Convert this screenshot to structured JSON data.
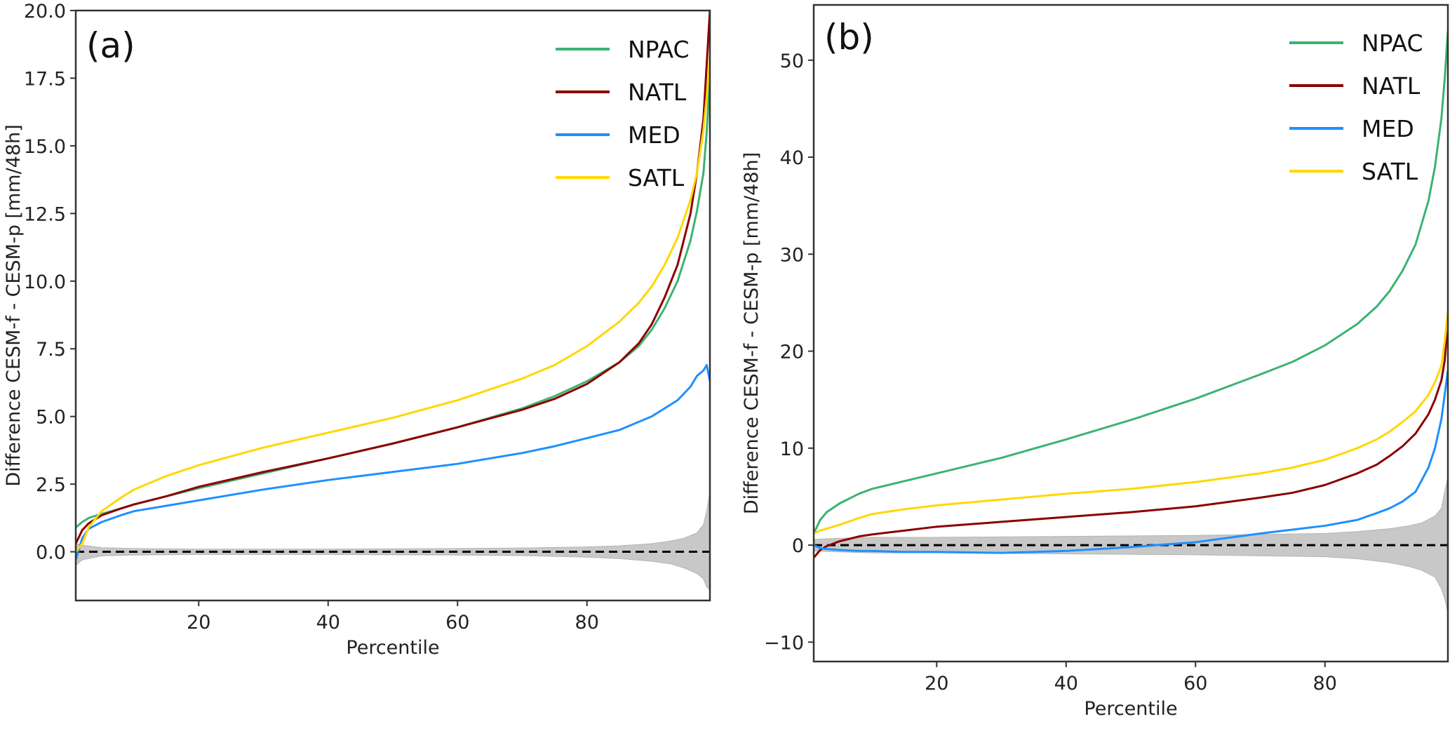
{
  "chart_data": [
    {
      "type": "line",
      "panel_label": "(a)",
      "title": "",
      "xlabel": "Percentile",
      "ylabel": "Difference CESM-f - CESM-p [mm/48h]",
      "xlim": [
        1,
        99
      ],
      "ylim": [
        -1.8,
        20.0
      ],
      "xticks": [
        20,
        40,
        60,
        80
      ],
      "xtick_labels": [
        "20",
        "40",
        "60",
        "80"
      ],
      "yticks": [
        0.0,
        2.5,
        5.0,
        7.5,
        10.0,
        12.5,
        15.0,
        17.5,
        20.0
      ],
      "ytick_labels": [
        "0.0",
        "2.5",
        "5.0",
        "7.5",
        "10.0",
        "12.5",
        "15.0",
        "17.5",
        "20.0"
      ],
      "grid": false,
      "legend_position": "top-right",
      "reference_line": {
        "y": 0,
        "style": "dashed",
        "color": "#000000"
      },
      "uncertainty_band": {
        "color": "#c8c8c8",
        "x": [
          1,
          2,
          5,
          10,
          20,
          40,
          60,
          70,
          80,
          85,
          90,
          93,
          95,
          97,
          98,
          98.5,
          99
        ],
        "upper": [
          0.3,
          0.25,
          0.15,
          0.12,
          0.1,
          0.1,
          0.12,
          0.14,
          0.18,
          0.22,
          0.3,
          0.4,
          0.5,
          0.7,
          1.0,
          1.5,
          2.2
        ],
        "lower": [
          -0.5,
          -0.3,
          -0.15,
          -0.12,
          -0.1,
          -0.1,
          -0.12,
          -0.14,
          -0.2,
          -0.25,
          -0.35,
          -0.45,
          -0.6,
          -0.8,
          -1.0,
          -1.3,
          -1.4
        ]
      },
      "x": [
        1,
        2,
        3,
        5,
        8,
        10,
        15,
        20,
        30,
        40,
        50,
        60,
        70,
        75,
        80,
        85,
        88,
        90,
        92,
        94,
        96,
        97,
        98,
        98.5,
        99
      ],
      "series": [
        {
          "name": "NPAC",
          "color": "#3cb371",
          "values": [
            0.9,
            1.1,
            1.25,
            1.4,
            1.6,
            1.75,
            2.05,
            2.35,
            2.9,
            3.45,
            4.0,
            4.6,
            5.3,
            5.75,
            6.3,
            7.0,
            7.6,
            8.2,
            9.0,
            10.0,
            11.5,
            12.6,
            14.0,
            15.5,
            17.5
          ]
        },
        {
          "name": "NATL",
          "color": "#8b0000",
          "values": [
            0.3,
            0.8,
            1.05,
            1.35,
            1.6,
            1.75,
            2.05,
            2.4,
            2.95,
            3.45,
            4.0,
            4.6,
            5.25,
            5.65,
            6.2,
            7.0,
            7.7,
            8.4,
            9.4,
            10.6,
            12.5,
            14.0,
            16.0,
            18.0,
            20.0
          ]
        },
        {
          "name": "MED",
          "color": "#1e90ff",
          "values": [
            -0.3,
            0.5,
            0.85,
            1.1,
            1.35,
            1.5,
            1.7,
            1.9,
            2.3,
            2.65,
            2.95,
            3.25,
            3.65,
            3.9,
            4.2,
            4.5,
            4.8,
            5.0,
            5.3,
            5.6,
            6.1,
            6.5,
            6.7,
            6.9,
            6.3
          ]
        },
        {
          "name": "SATL",
          "color": "#ffd700",
          "values": [
            0.0,
            0.3,
            0.9,
            1.5,
            2.0,
            2.3,
            2.8,
            3.2,
            3.85,
            4.4,
            4.95,
            5.6,
            6.4,
            6.9,
            7.6,
            8.5,
            9.2,
            9.8,
            10.6,
            11.6,
            13.0,
            14.0,
            15.6,
            16.8,
            18.3
          ]
        }
      ]
    },
    {
      "type": "line",
      "panel_label": "(b)",
      "title": "",
      "xlabel": "Percentile",
      "ylabel": "Difference CESM-f - CESM-p [mm/48h]",
      "xlim": [
        1,
        99
      ],
      "ylim": [
        -12,
        55.7
      ],
      "xticks": [
        20,
        40,
        60,
        80
      ],
      "xtick_labels": [
        "20",
        "40",
        "60",
        "80"
      ],
      "yticks": [
        -10,
        0,
        10,
        20,
        30,
        40,
        50
      ],
      "ytick_labels": [
        "−10",
        "0",
        "10",
        "20",
        "30",
        "40",
        "50"
      ],
      "grid": false,
      "legend_position": "top-right",
      "reference_line": {
        "y": 0,
        "style": "dashed",
        "color": "#000000"
      },
      "uncertainty_band": {
        "color": "#c8c8c8",
        "x": [
          1,
          5,
          10,
          20,
          40,
          60,
          70,
          80,
          85,
          90,
          93,
          95,
          97,
          98,
          98.5,
          99
        ],
        "upper": [
          0.6,
          0.7,
          0.8,
          0.8,
          0.9,
          1.0,
          1.1,
          1.2,
          1.4,
          1.7,
          2.0,
          2.3,
          3.0,
          3.8,
          5.5,
          7.0
        ],
        "lower": [
          -0.6,
          -0.7,
          -0.8,
          -0.8,
          -0.9,
          -1.0,
          -1.1,
          -1.2,
          -1.4,
          -1.8,
          -2.2,
          -2.6,
          -3.3,
          -4.5,
          -5.5,
          -7.0
        ]
      },
      "x": [
        1,
        2,
        3,
        5,
        8,
        10,
        15,
        20,
        30,
        40,
        50,
        60,
        70,
        75,
        80,
        85,
        88,
        90,
        92,
        94,
        96,
        97,
        98,
        98.5,
        99
      ],
      "series": [
        {
          "name": "NPAC",
          "color": "#3cb371",
          "values": [
            1.2,
            2.6,
            3.4,
            4.3,
            5.3,
            5.8,
            6.6,
            7.4,
            9.0,
            10.9,
            12.9,
            15.1,
            17.6,
            18.9,
            20.6,
            22.8,
            24.6,
            26.2,
            28.3,
            31.0,
            35.5,
            39.0,
            44.0,
            48.0,
            53.0
          ]
        },
        {
          "name": "NATL",
          "color": "#8b0000",
          "values": [
            -1.3,
            -0.5,
            -0.1,
            0.4,
            0.9,
            1.1,
            1.5,
            1.9,
            2.4,
            2.9,
            3.4,
            4.0,
            4.9,
            5.4,
            6.2,
            7.4,
            8.3,
            9.2,
            10.2,
            11.5,
            13.5,
            15.0,
            17.0,
            19.0,
            23.0
          ]
        },
        {
          "name": "MED",
          "color": "#1e90ff",
          "values": [
            0.0,
            -0.3,
            -0.4,
            -0.5,
            -0.6,
            -0.6,
            -0.7,
            -0.7,
            -0.8,
            -0.6,
            -0.2,
            0.3,
            1.2,
            1.6,
            2.0,
            2.6,
            3.3,
            3.8,
            4.5,
            5.5,
            8.0,
            10.0,
            13.0,
            15.5,
            18.0
          ]
        },
        {
          "name": "SATL",
          "color": "#ffd700",
          "values": [
            1.2,
            1.5,
            1.7,
            2.1,
            2.8,
            3.2,
            3.7,
            4.1,
            4.7,
            5.3,
            5.8,
            6.5,
            7.4,
            8.0,
            8.8,
            10.0,
            10.9,
            11.7,
            12.7,
            13.8,
            15.5,
            16.8,
            18.5,
            21.0,
            24.0
          ]
        }
      ]
    }
  ]
}
